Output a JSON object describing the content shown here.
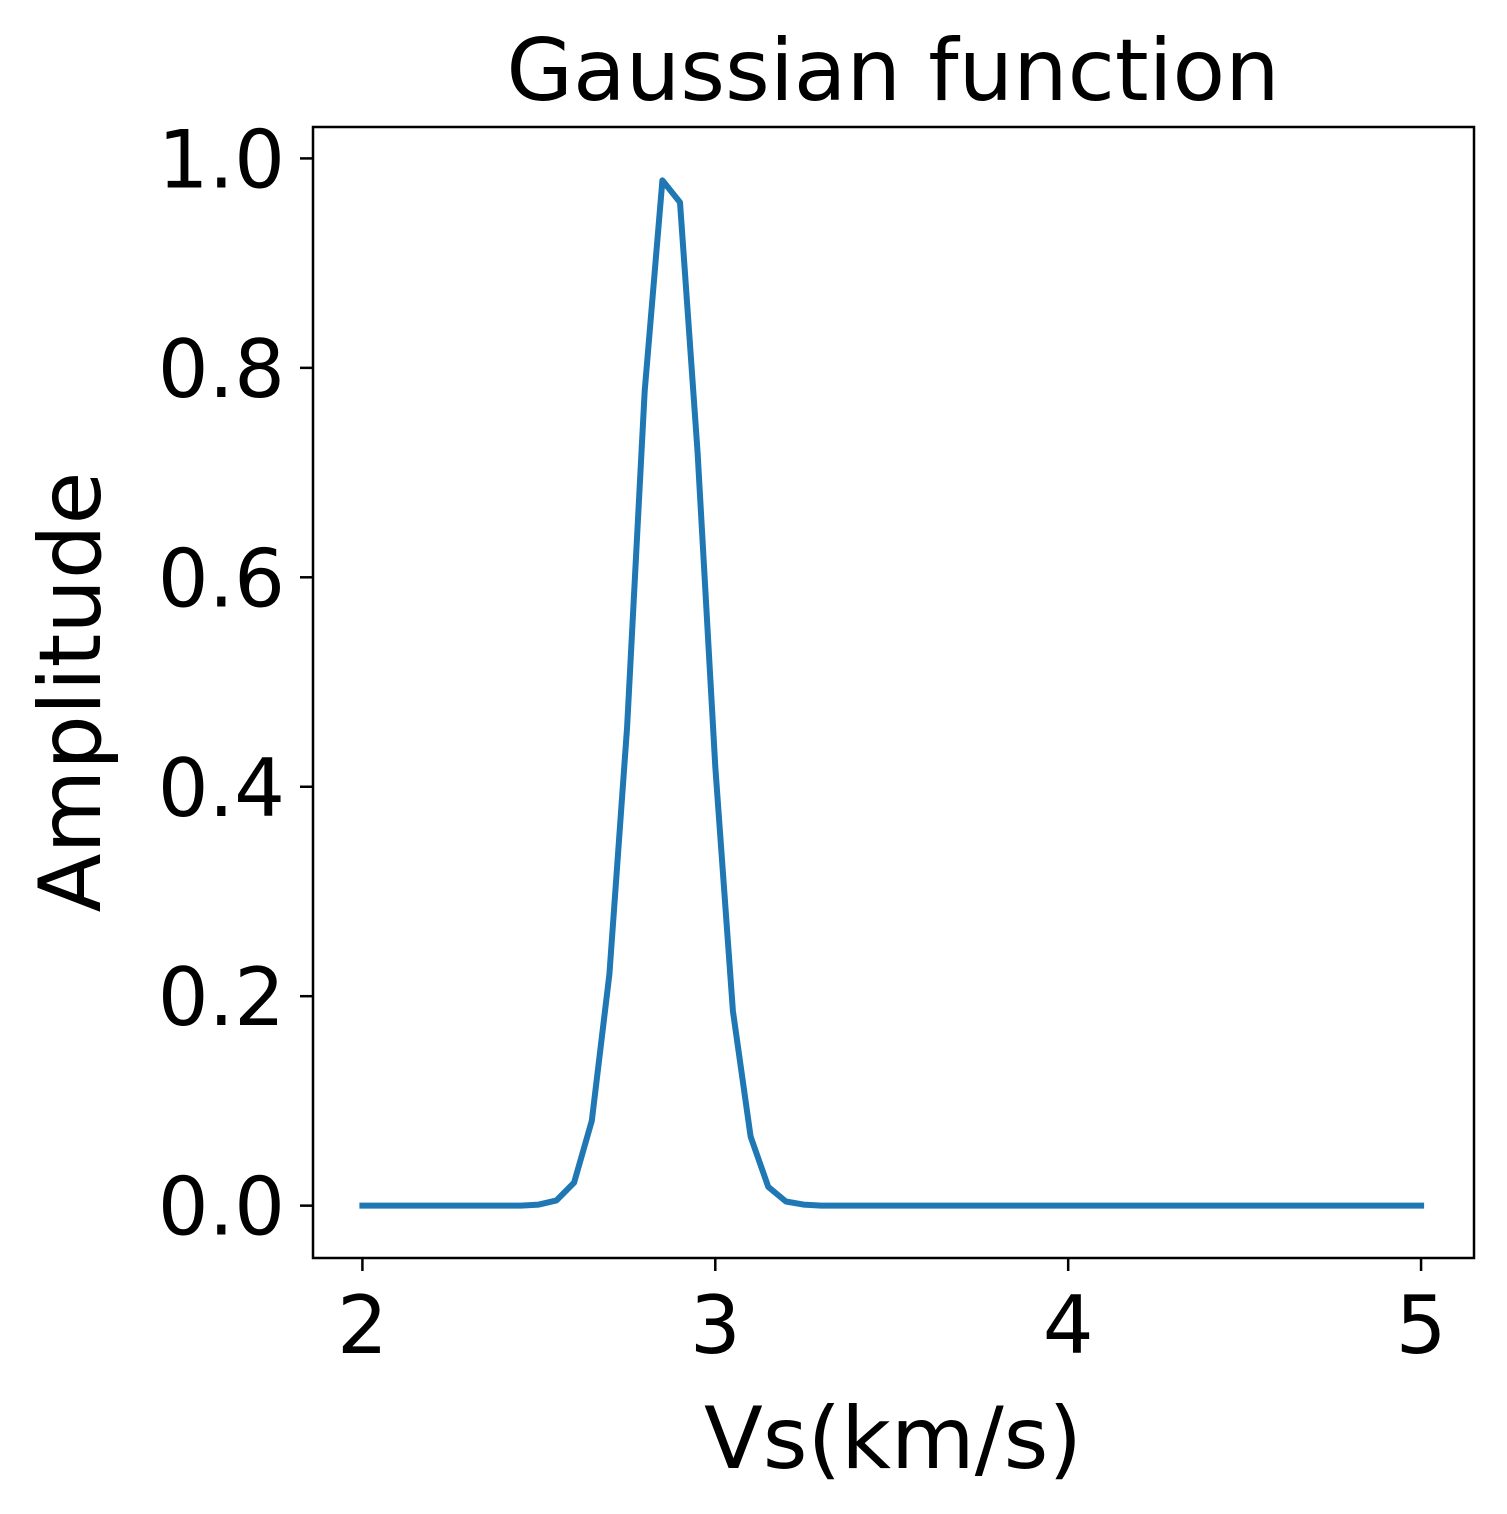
{
  "chart_data": {
    "type": "line",
    "title": "Gaussian function",
    "xlabel": "Vs(km/s)",
    "ylabel": "Amplitude",
    "xlim": [
      1.86,
      5.15
    ],
    "ylim": [
      -0.05,
      1.03
    ],
    "xticks": [
      2,
      3,
      4,
      5
    ],
    "xtick_labels": [
      "2",
      "3",
      "4",
      "5"
    ],
    "yticks": [
      0.0,
      0.2,
      0.4,
      0.6,
      0.8,
      1.0
    ],
    "ytick_labels": [
      "0.0",
      "0.2",
      "0.4",
      "0.6",
      "0.8",
      "1.0"
    ],
    "grid": false,
    "series": [
      {
        "color": "#1f77b4",
        "x": [
          2.0,
          2.05,
          2.1,
          2.15,
          2.2,
          2.25,
          2.3,
          2.35,
          2.4,
          2.45,
          2.5,
          2.55,
          2.6,
          2.65,
          2.7,
          2.75,
          2.8,
          2.85,
          2.9,
          2.95,
          3.0,
          3.05,
          3.1,
          3.15,
          3.2,
          3.25,
          3.3,
          3.35,
          3.4,
          3.5,
          3.6,
          3.8,
          4.0,
          4.2,
          4.4,
          4.6,
          4.8,
          5.0
        ],
        "y": [
          0.0,
          0.0,
          0.0,
          0.0,
          0.0,
          0.0,
          0.0,
          0.0,
          0.0,
          0.0,
          0.001,
          0.005,
          0.022,
          0.081,
          0.221,
          0.457,
          0.778,
          0.979,
          0.958,
          0.719,
          0.419,
          0.186,
          0.066,
          0.018,
          0.004,
          0.001,
          0.0,
          0.0,
          0.0,
          0.0,
          0.0,
          0.0,
          0.0,
          0.0,
          0.0,
          0.0,
          0.0,
          0.0
        ]
      }
    ]
  }
}
